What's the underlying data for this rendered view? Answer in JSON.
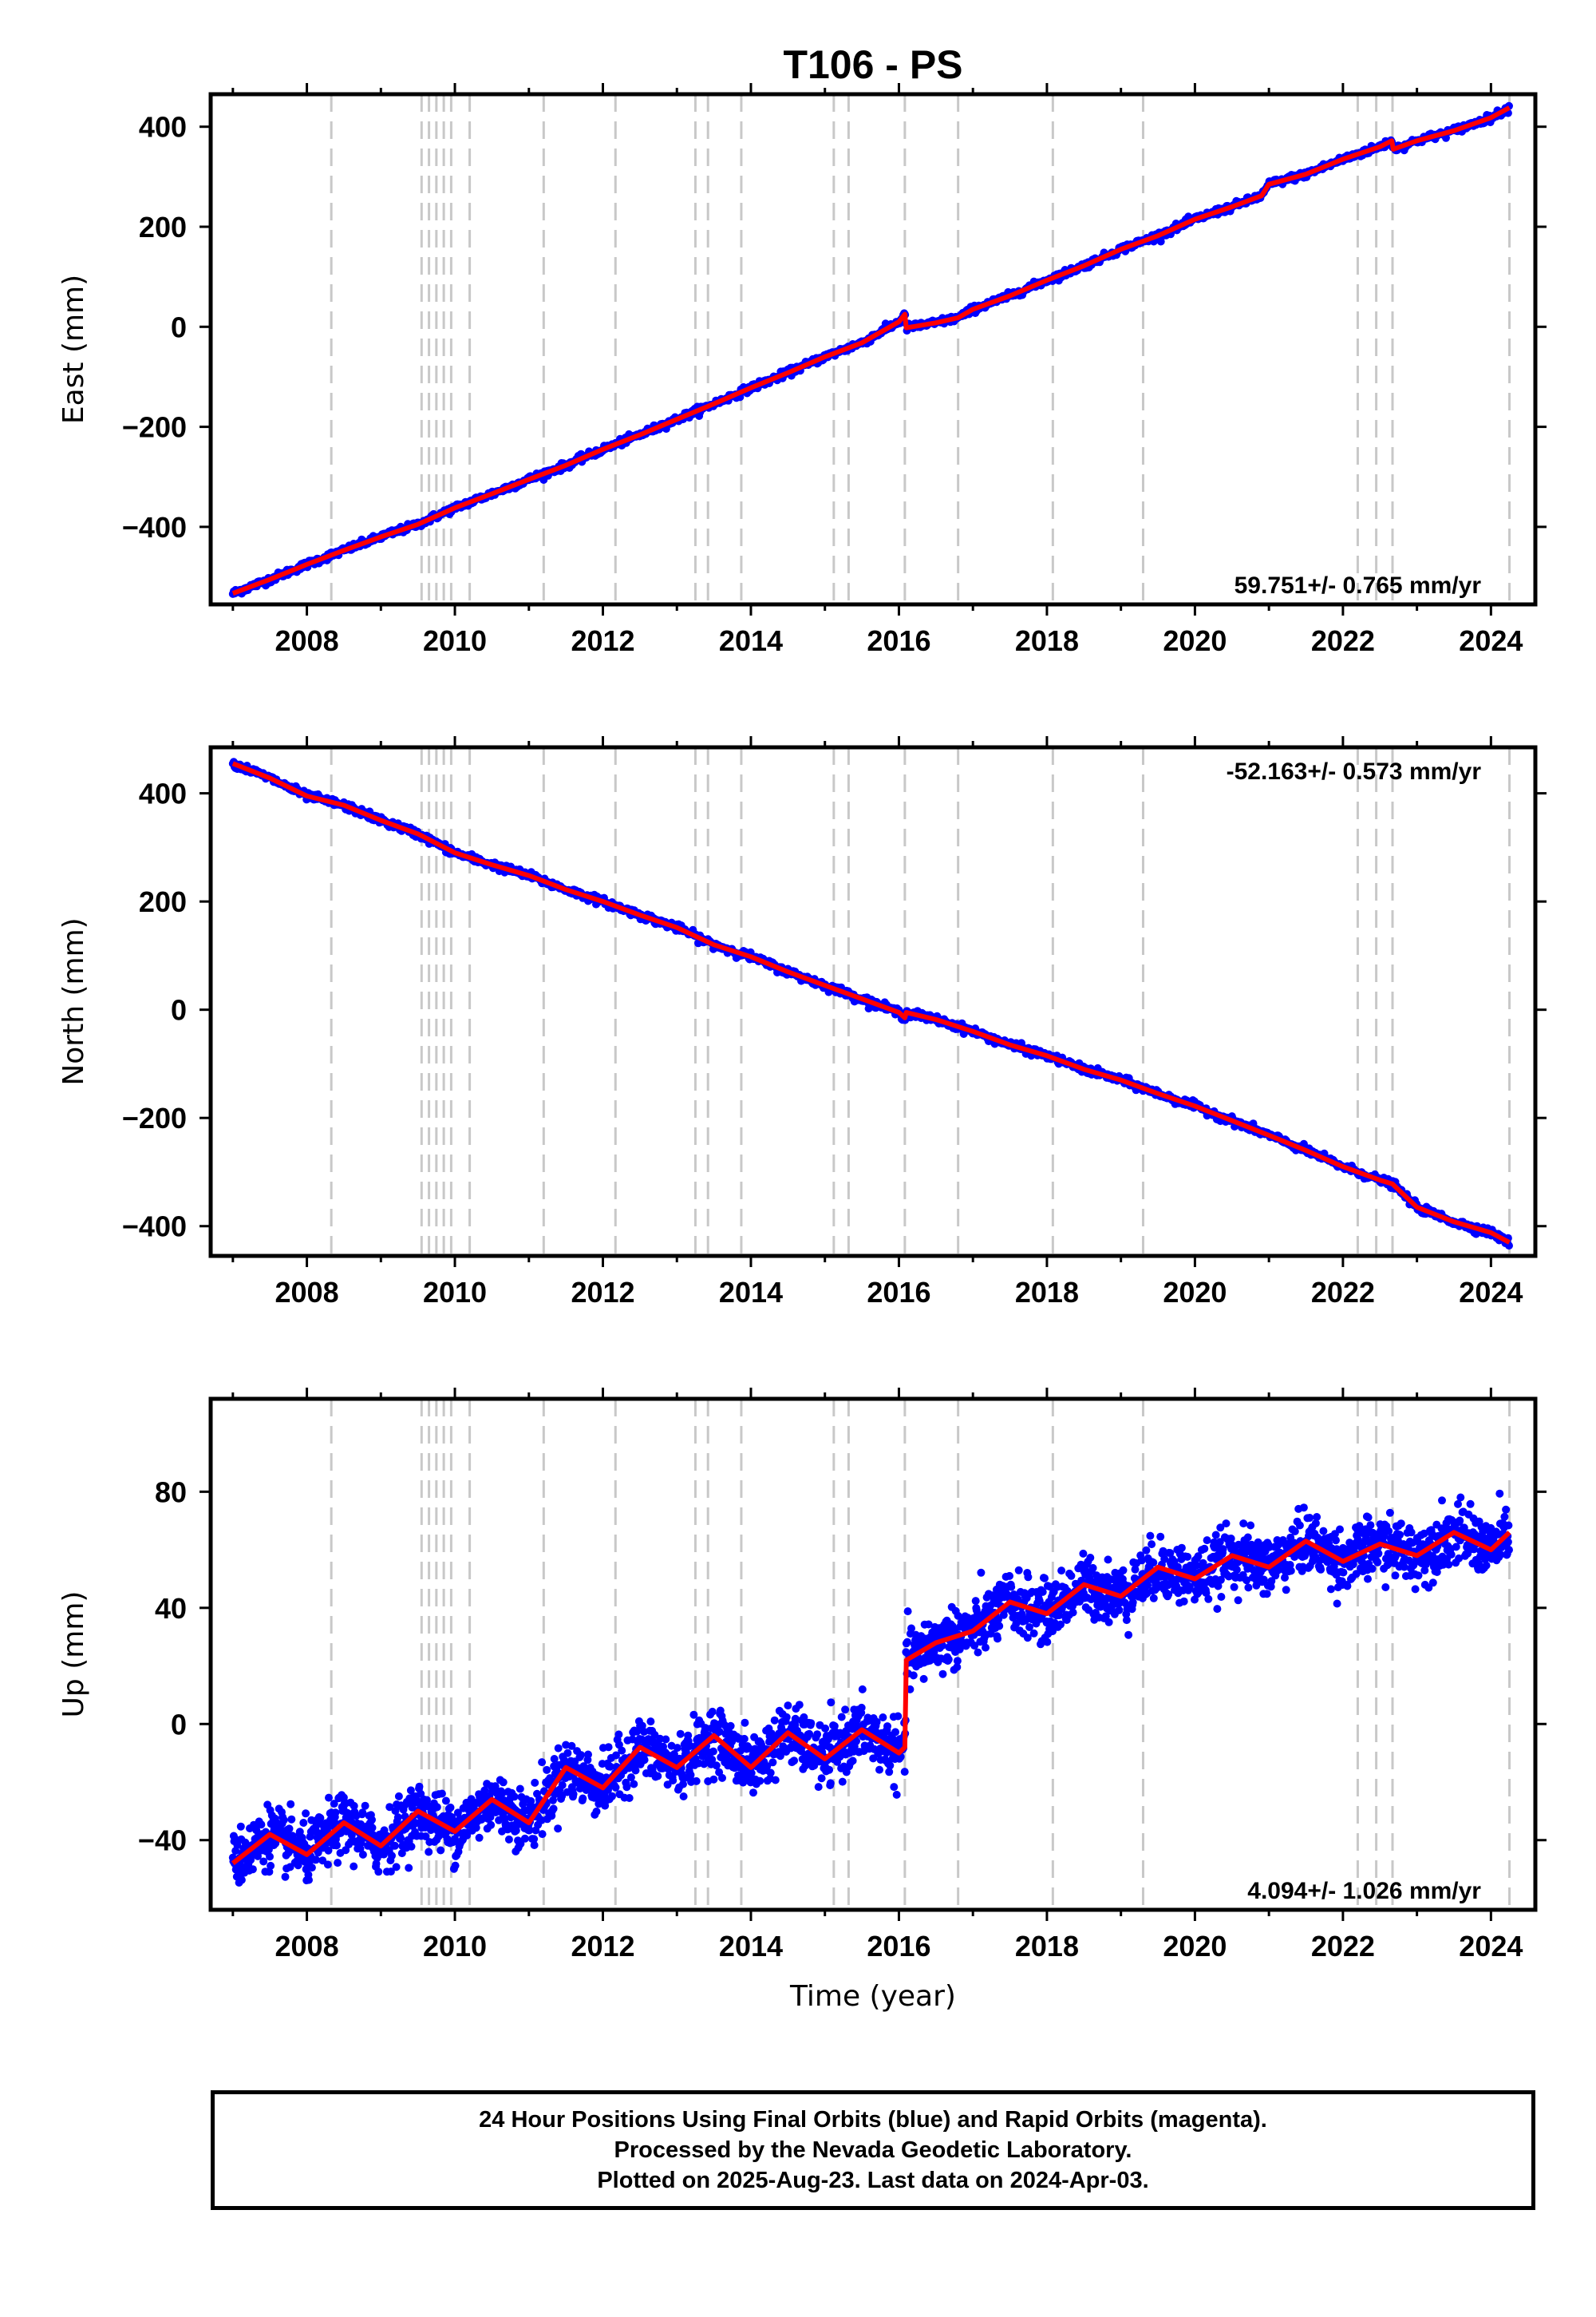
{
  "figure": {
    "title": "T106 - PS",
    "footer": [
      "24 Hour Positions Using Final Orbits (blue) and Rapid Orbits (magenta).",
      "Processed by the Nevada Geodetic Laboratory.",
      "Plotted on 2025-Aug-23. Last data on 2024-Apr-03."
    ],
    "colors": {
      "data": "#0000ff",
      "model": "#ff0000",
      "event_lines": "#c8c8c8",
      "frame": "#000000"
    }
  },
  "chart_data": [
    {
      "type": "scatter",
      "name": "East",
      "ylabel": "East (mm)",
      "xlabel": "",
      "xlim": [
        2006.7,
        2024.6
      ],
      "ylim": [
        -555,
        465
      ],
      "x_ticks": [
        2008,
        2010,
        2012,
        2014,
        2016,
        2018,
        2020,
        2022,
        2024
      ],
      "y_ticks": [
        -400,
        -200,
        0,
        200,
        400
      ],
      "y_tick_labels": [
        "−400",
        "−200",
        "0",
        "200",
        "400"
      ],
      "rate_label": "59.751+/- 0.765 mm/yr",
      "rate_position": "bottom-right",
      "event_lines": [
        2008.33,
        2009.55,
        2009.65,
        2009.75,
        2009.85,
        2009.95,
        2010.2,
        2011.2,
        2012.17,
        2013.25,
        2013.42,
        2013.87,
        2015.12,
        2015.32,
        2016.08,
        2016.8,
        2018.08,
        2019.3,
        2022.2,
        2022.45,
        2022.67,
        2024.25
      ],
      "series": [
        {
          "name": "24 Hour Positions (blue)",
          "x": [
            2007.0,
            2007.5,
            2008.0,
            2008.5,
            2009.0,
            2009.5,
            2010.0,
            2010.5,
            2011.0,
            2011.5,
            2012.0,
            2012.5,
            2013.0,
            2013.5,
            2014.0,
            2014.5,
            2015.0,
            2015.5,
            2016.0,
            2016.08,
            2016.1,
            2016.5,
            2016.8,
            2017.0,
            2017.5,
            2018.0,
            2018.5,
            2019.0,
            2019.5,
            2020.0,
            2020.5,
            2020.9,
            2021.0,
            2021.5,
            2022.0,
            2022.5,
            2022.66,
            2022.68,
            2023.0,
            2023.5,
            2024.0,
            2024.25
          ],
          "y": [
            -533,
            -505,
            -475,
            -447,
            -420,
            -395,
            -362,
            -334,
            -305,
            -277,
            -245,
            -216,
            -185,
            -154,
            -122,
            -92,
            -60,
            -32,
            10,
            25,
            -2,
            8,
            18,
            35,
            62,
            93,
            122,
            155,
            182,
            215,
            240,
            262,
            285,
            305,
            335,
            360,
            372,
            355,
            372,
            392,
            418,
            438
          ]
        },
        {
          "name": "Model (red)",
          "x": [
            2007.0,
            2007.5,
            2008.0,
            2008.5,
            2009.0,
            2009.5,
            2010.0,
            2010.5,
            2011.0,
            2011.5,
            2012.0,
            2012.5,
            2013.0,
            2013.5,
            2014.0,
            2014.5,
            2015.0,
            2015.5,
            2016.0,
            2016.08,
            2016.1,
            2016.5,
            2016.8,
            2017.0,
            2017.5,
            2018.0,
            2018.5,
            2019.0,
            2019.5,
            2020.0,
            2020.5,
            2020.9,
            2021.0,
            2021.5,
            2022.0,
            2022.5,
            2022.66,
            2022.68,
            2023.0,
            2023.5,
            2024.0,
            2024.25
          ],
          "y": [
            -533,
            -505,
            -475,
            -447,
            -420,
            -395,
            -362,
            -334,
            -305,
            -277,
            -245,
            -216,
            -185,
            -154,
            -122,
            -92,
            -60,
            -32,
            10,
            25,
            -2,
            8,
            18,
            35,
            62,
            93,
            122,
            155,
            182,
            215,
            240,
            262,
            285,
            305,
            335,
            360,
            372,
            355,
            372,
            392,
            418,
            438
          ]
        }
      ]
    },
    {
      "type": "scatter",
      "name": "North",
      "ylabel": "North (mm)",
      "xlabel": "",
      "xlim": [
        2006.7,
        2024.6
      ],
      "ylim": [
        -455,
        485
      ],
      "x_ticks": [
        2008,
        2010,
        2012,
        2014,
        2016,
        2018,
        2020,
        2022,
        2024
      ],
      "y_ticks": [
        -400,
        -200,
        0,
        200,
        400
      ],
      "y_tick_labels": [
        "−400",
        "−200",
        "0",
        "200",
        "400"
      ],
      "rate_label": "-52.163+/- 0.573 mm/yr",
      "rate_position": "top-right",
      "event_lines": [
        2008.33,
        2009.55,
        2009.65,
        2009.75,
        2009.85,
        2009.95,
        2010.2,
        2011.2,
        2012.17,
        2013.25,
        2013.42,
        2013.87,
        2015.12,
        2015.32,
        2016.08,
        2016.8,
        2018.08,
        2019.3,
        2022.2,
        2022.45,
        2022.67,
        2024.25
      ],
      "series": [
        {
          "name": "24 Hour Positions (blue)",
          "x": [
            2007.0,
            2007.5,
            2008.0,
            2008.5,
            2009.0,
            2009.5,
            2010.0,
            2010.5,
            2011.0,
            2011.5,
            2012.0,
            2012.5,
            2013.0,
            2013.5,
            2014.0,
            2014.5,
            2015.0,
            2015.5,
            2016.0,
            2016.08,
            2016.1,
            2016.5,
            2017.0,
            2017.5,
            2018.0,
            2018.5,
            2019.0,
            2019.5,
            2020.0,
            2020.5,
            2021.0,
            2021.5,
            2022.0,
            2022.5,
            2022.67,
            2023.0,
            2023.5,
            2024.0,
            2024.25
          ],
          "y": [
            455,
            428,
            395,
            378,
            350,
            325,
            290,
            268,
            248,
            222,
            200,
            175,
            152,
            120,
            98,
            70,
            45,
            20,
            -5,
            -15,
            -5,
            -18,
            -40,
            -65,
            -85,
            -110,
            -130,
            -155,
            -178,
            -205,
            -232,
            -260,
            -290,
            -315,
            -322,
            -365,
            -392,
            -412,
            -430
          ]
        },
        {
          "name": "Model (red)",
          "x": [
            2007.0,
            2007.5,
            2008.0,
            2008.5,
            2009.0,
            2009.5,
            2010.0,
            2010.5,
            2011.0,
            2011.5,
            2012.0,
            2012.5,
            2013.0,
            2013.5,
            2014.0,
            2014.5,
            2015.0,
            2015.5,
            2016.0,
            2016.08,
            2016.1,
            2016.5,
            2017.0,
            2017.5,
            2018.0,
            2018.5,
            2019.0,
            2019.5,
            2020.0,
            2020.5,
            2021.0,
            2021.5,
            2022.0,
            2022.5,
            2022.67,
            2023.0,
            2023.5,
            2024.0,
            2024.25
          ],
          "y": [
            455,
            428,
            395,
            378,
            350,
            325,
            290,
            268,
            248,
            222,
            200,
            175,
            152,
            120,
            98,
            70,
            45,
            20,
            -5,
            -15,
            -5,
            -18,
            -40,
            -65,
            -85,
            -110,
            -130,
            -155,
            -178,
            -205,
            -232,
            -260,
            -290,
            -315,
            -322,
            -365,
            -392,
            -412,
            -430
          ]
        }
      ]
    },
    {
      "type": "scatter",
      "name": "Up",
      "ylabel": "Up (mm)",
      "xlabel": "Time (year)",
      "xlim": [
        2006.7,
        2024.6
      ],
      "ylim": [
        -64,
        112
      ],
      "x_ticks": [
        2008,
        2010,
        2012,
        2014,
        2016,
        2018,
        2020,
        2022,
        2024
      ],
      "y_ticks": [
        -40,
        0,
        40,
        80
      ],
      "y_tick_labels": [
        "−40",
        "0",
        "40",
        "80"
      ],
      "rate_label": "4.094+/- 1.026 mm/yr",
      "rate_position": "bottom-right",
      "event_lines": [
        2008.33,
        2009.55,
        2009.65,
        2009.75,
        2009.85,
        2009.95,
        2010.2,
        2011.2,
        2012.17,
        2013.25,
        2013.42,
        2013.87,
        2015.12,
        2015.32,
        2016.08,
        2016.8,
        2018.08,
        2019.3,
        2022.2,
        2022.45,
        2022.67,
        2024.25
      ],
      "series": [
        {
          "name": "24 Hour Positions (blue)",
          "x": [
            2007.0,
            2007.5,
            2008.0,
            2008.5,
            2009.0,
            2009.5,
            2010.0,
            2010.5,
            2011.0,
            2011.5,
            2012.0,
            2012.5,
            2013.0,
            2013.5,
            2014.0,
            2014.5,
            2015.0,
            2015.5,
            2016.0,
            2016.08,
            2016.1,
            2016.5,
            2017.0,
            2017.5,
            2018.0,
            2018.5,
            2019.0,
            2019.5,
            2020.0,
            2020.5,
            2021.0,
            2021.5,
            2022.0,
            2022.5,
            2023.0,
            2023.5,
            2024.0,
            2024.25
          ],
          "y": [
            -48,
            -38,
            -45,
            -34,
            -42,
            -30,
            -37,
            -26,
            -34,
            -15,
            -22,
            -8,
            -15,
            -4,
            -15,
            -3,
            -12,
            -2,
            -10,
            -8,
            22,
            28,
            32,
            42,
            38,
            48,
            44,
            54,
            50,
            58,
            54,
            63,
            56,
            62,
            58,
            66,
            60,
            66
          ]
        },
        {
          "name": "Model (red)",
          "x": [
            2007.0,
            2007.5,
            2008.0,
            2008.5,
            2009.0,
            2009.5,
            2010.0,
            2010.5,
            2011.0,
            2011.5,
            2012.0,
            2012.5,
            2013.0,
            2013.5,
            2014.0,
            2014.5,
            2015.0,
            2015.5,
            2016.0,
            2016.08,
            2016.1,
            2016.5,
            2017.0,
            2017.5,
            2018.0,
            2018.5,
            2019.0,
            2019.5,
            2020.0,
            2020.5,
            2021.0,
            2021.5,
            2022.0,
            2022.5,
            2023.0,
            2023.5,
            2024.0,
            2024.25
          ],
          "y": [
            -48,
            -38,
            -45,
            -34,
            -42,
            -30,
            -37,
            -26,
            -34,
            -15,
            -22,
            -8,
            -15,
            -4,
            -15,
            -3,
            -12,
            -2,
            -10,
            -8,
            22,
            28,
            32,
            42,
            38,
            48,
            44,
            54,
            50,
            58,
            54,
            63,
            56,
            62,
            58,
            66,
            60,
            66
          ]
        }
      ]
    }
  ]
}
